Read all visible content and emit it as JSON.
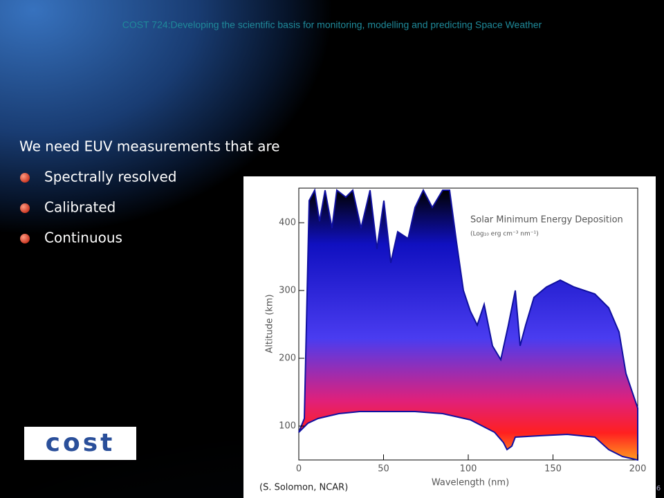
{
  "header": {
    "title": "COST 724:Developing the scientific basis for monitoring, modelling and predicting Space Weather"
  },
  "body": {
    "heading": "We need EUV measurements that are",
    "bullets": [
      "Spectrally resolved",
      "Calibrated",
      "Continuous"
    ]
  },
  "figure": {
    "title": "Solar Minimum Energy Deposition",
    "subtitle": "(Log₁₀ erg cm⁻³ nm⁻¹)",
    "y_label": "Altitude (km)",
    "x_label": "Wavelength (nm)",
    "x_ticks": [
      "0",
      "50",
      "100",
      "150",
      "200"
    ],
    "y_ticks": [
      "100",
      "200",
      "300",
      "400"
    ],
    "caption": "(S. Solomon, NCAR)"
  },
  "logo": {
    "text": "cost"
  },
  "footer": {
    "page": "6"
  }
}
